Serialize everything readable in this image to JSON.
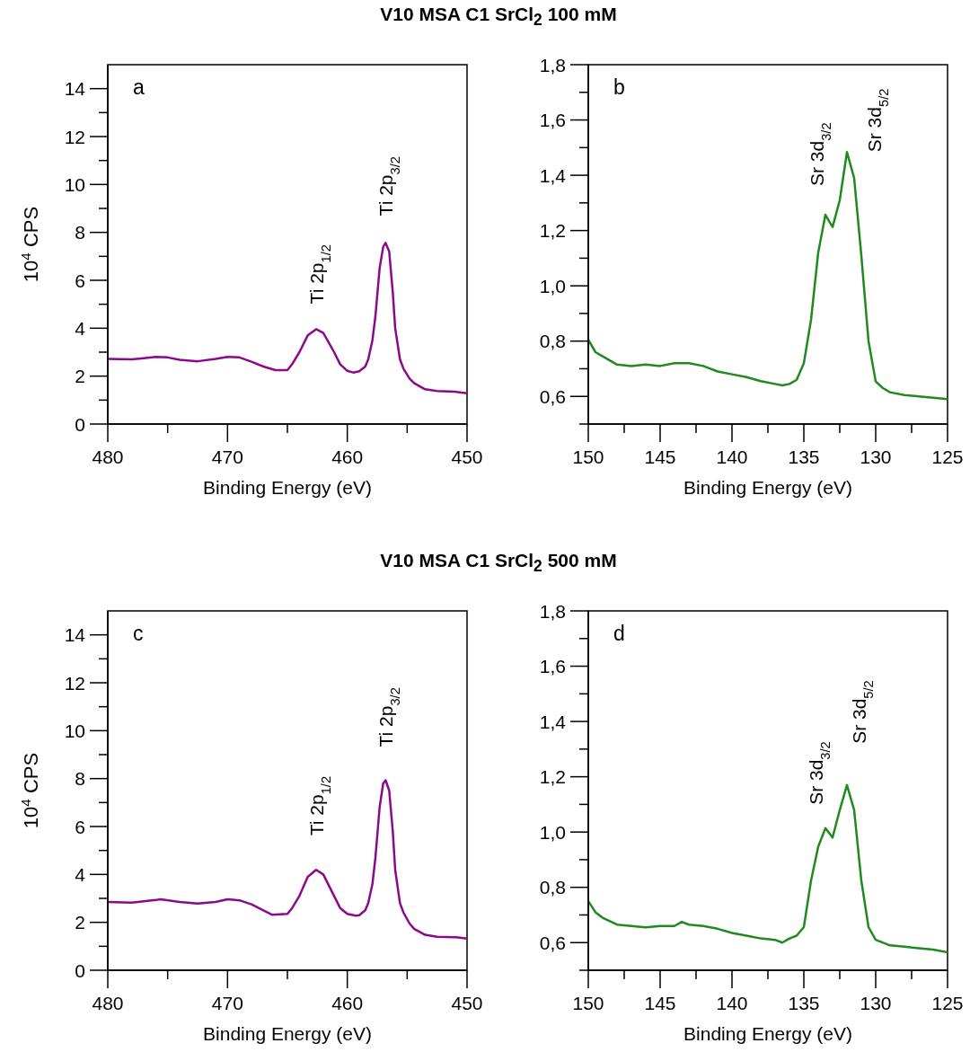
{
  "chart_data": [
    {
      "type": "line",
      "title": "V10 MSA C1 SrCl$_{2}$ 100 mM",
      "xlabel": "Binding Energy (eV)",
      "ylabel": "10$^{4}$ CPS",
      "color": "#8b0a8b",
      "x": [
        480,
        478,
        477,
        476,
        475,
        474,
        472.5,
        471,
        470,
        469,
        468,
        467,
        466,
        465,
        464.6,
        464,
        463.3,
        462.6,
        462,
        461.1,
        460.6,
        460,
        459.5,
        459,
        458.5,
        458.25,
        457.9,
        457.65,
        457.3,
        457,
        456.8,
        456.5,
        456.2,
        456,
        455.6,
        455.3,
        454.8,
        454.4,
        453.5,
        452.5,
        451,
        450
      ],
      "values": [
        2.72,
        2.7,
        2.75,
        2.8,
        2.78,
        2.68,
        2.62,
        2.72,
        2.8,
        2.78,
        2.6,
        2.4,
        2.25,
        2.25,
        2.5,
        3.0,
        3.7,
        3.96,
        3.8,
        3.0,
        2.5,
        2.22,
        2.15,
        2.2,
        2.4,
        2.7,
        3.5,
        4.5,
        6.5,
        7.4,
        7.56,
        7.2,
        5.5,
        4.0,
        2.7,
        2.3,
        1.9,
        1.7,
        1.45,
        1.38,
        1.35,
        1.28
      ],
      "xlim": [
        480,
        450
      ],
      "xticks": [
        480,
        {
          "value": 475,
          "label": null
        },
        470,
        {
          "value": 465,
          "label": null
        },
        460,
        {
          "value": 455,
          "label": null
        },
        450
      ],
      "ylim": [
        0,
        15
      ],
      "yticks": [
        0,
        {
          "value": 1,
          "label": null
        },
        2,
        {
          "value": 3,
          "label": null
        },
        4,
        {
          "value": 5,
          "label": null
        },
        6,
        {
          "value": 7,
          "label": null
        },
        8,
        {
          "value": 9,
          "label": null
        },
        10,
        {
          "value": 11,
          "label": null
        },
        12,
        {
          "value": 13,
          "label": null
        },
        14
      ],
      "annotations": [
        "a",
        {
          "text": "Ti 2p$_{1/2}$",
          "x": 462.6,
          "y": 3.96
        },
        {
          "text": "Ti 2p$_{3/2}$",
          "x": 456.8,
          "y": 7.56
        }
      ]
    },
    {
      "type": "line",
      "xlabel": "Binding Energy (eV)",
      "color": "#1f8a1f",
      "x": [
        150,
        149.5,
        149,
        148,
        147,
        146,
        145,
        144,
        143,
        142,
        141,
        140,
        139,
        138,
        137,
        136.5,
        136,
        135.5,
        135,
        134.5,
        134,
        133.5,
        133.2,
        133,
        132.5,
        132,
        131.5,
        131,
        130.5,
        130,
        129.5,
        129,
        128,
        127,
        126,
        125
      ],
      "values": [
        0.805,
        0.76,
        0.745,
        0.715,
        0.71,
        0.715,
        0.71,
        0.72,
        0.72,
        0.71,
        0.69,
        0.68,
        0.67,
        0.655,
        0.645,
        0.64,
        0.645,
        0.66,
        0.72,
        0.877,
        1.12,
        1.257,
        1.23,
        1.213,
        1.31,
        1.484,
        1.39,
        1.11,
        0.8,
        0.654,
        0.63,
        0.615,
        0.605,
        0.6,
        0.595,
        0.59
      ],
      "xlim": [
        150,
        125
      ],
      "xticks": [
        150,
        {
          "value": 147.5,
          "label": null
        },
        145,
        {
          "value": 142.5,
          "label": null
        },
        140,
        {
          "value": 137.5,
          "label": null
        },
        135,
        {
          "value": 132.5,
          "label": null
        },
        130,
        {
          "value": 127.5,
          "label": null
        },
        125
      ],
      "ylim": [
        0.5,
        1.8
      ],
      "yticks": [
        {
          "value": 0.5,
          "label": null
        },
        {
          "value": 0.6,
          "label": "0,6"
        },
        {
          "value": 0.7,
          "label": null
        },
        {
          "value": 0.8,
          "label": "0,8"
        },
        {
          "value": 0.9,
          "label": null
        },
        {
          "value": 1.0,
          "label": "1,0"
        },
        {
          "value": 1.1,
          "label": null
        },
        {
          "value": 1.2,
          "label": "1,2"
        },
        {
          "value": 1.3,
          "label": null
        },
        {
          "value": 1.4,
          "label": "1,4"
        },
        {
          "value": 1.5,
          "label": null
        },
        {
          "value": 1.6,
          "label": "1,6"
        },
        {
          "value": 1.7,
          "label": null
        },
        {
          "value": 1.8,
          "label": "1,8"
        }
      ],
      "annotations": [
        "b",
        {
          "text": "Sr 3d$_{3/2}$",
          "x": 133.5,
          "y": 1.257
        },
        {
          "text": "Sr 3d$_{5/2}$",
          "x": 132,
          "y": 1.484
        }
      ]
    },
    {
      "type": "line",
      "title": "V10 MSA C1 SrCl$_{2}$ 500 mM",
      "xlabel": "Binding Energy (eV)",
      "ylabel": "10$^{4}$ CPS",
      "color": "#8b0a8b",
      "x": [
        480,
        478,
        477,
        476,
        475.6,
        474,
        472.5,
        471,
        470,
        469,
        468,
        467,
        466.3,
        465,
        464.6,
        464,
        463.3,
        462.6,
        462,
        461.1,
        460.6,
        460,
        459.3,
        459,
        458.5,
        458.25,
        457.9,
        457.65,
        457.3,
        457,
        456.8,
        456.5,
        456.2,
        456,
        455.6,
        455.3,
        454.8,
        454.4,
        453.5,
        452.5,
        451,
        450
      ],
      "values": [
        2.85,
        2.82,
        2.88,
        2.93,
        2.96,
        2.85,
        2.78,
        2.85,
        2.96,
        2.92,
        2.75,
        2.5,
        2.32,
        2.35,
        2.6,
        3.1,
        3.9,
        4.19,
        4.0,
        3.1,
        2.6,
        2.35,
        2.28,
        2.3,
        2.5,
        2.8,
        3.6,
        4.7,
        6.8,
        7.8,
        7.93,
        7.5,
        5.8,
        4.2,
        2.8,
        2.4,
        1.95,
        1.72,
        1.48,
        1.4,
        1.38,
        1.32
      ],
      "xlim": [
        480,
        450
      ],
      "xticks": [
        480,
        {
          "value": 475,
          "label": null
        },
        470,
        {
          "value": 465,
          "label": null
        },
        460,
        {
          "value": 455,
          "label": null
        },
        450
      ],
      "ylim": [
        0,
        15
      ],
      "yticks": [
        0,
        {
          "value": 1,
          "label": null
        },
        2,
        {
          "value": 3,
          "label": null
        },
        4,
        {
          "value": 5,
          "label": null
        },
        6,
        {
          "value": 7,
          "label": null
        },
        8,
        {
          "value": 9,
          "label": null
        },
        10,
        {
          "value": 11,
          "label": null
        },
        12,
        {
          "value": 13,
          "label": null
        },
        14
      ],
      "annotations": [
        "c",
        {
          "text": "Ti 2p$_{1/2}$",
          "x": 462.6,
          "y": 4.19
        },
        {
          "text": "Ti 2p$_{3/2}$",
          "x": 456.8,
          "y": 7.93
        }
      ]
    },
    {
      "type": "line",
      "xlabel": "Binding Energy (eV)",
      "color": "#1f8a1f",
      "x": [
        150,
        149.5,
        149,
        148,
        147,
        146,
        145,
        144,
        143.5,
        143,
        142,
        141,
        140,
        139,
        138,
        137,
        136.5,
        136,
        135.5,
        135,
        134.5,
        134,
        133.5,
        133,
        132.5,
        132,
        131.5,
        131,
        130.5,
        130,
        129,
        128,
        127,
        126,
        125
      ],
      "values": [
        0.75,
        0.71,
        0.69,
        0.665,
        0.66,
        0.655,
        0.66,
        0.66,
        0.675,
        0.665,
        0.66,
        0.65,
        0.635,
        0.625,
        0.615,
        0.61,
        0.6,
        0.615,
        0.625,
        0.656,
        0.824,
        0.947,
        1.014,
        0.98,
        1.08,
        1.17,
        1.08,
        0.824,
        0.656,
        0.61,
        0.59,
        0.585,
        0.58,
        0.575,
        0.565
      ],
      "xlim": [
        150,
        125
      ],
      "xticks": [
        150,
        {
          "value": 147.5,
          "label": null
        },
        145,
        {
          "value": 142.5,
          "label": null
        },
        140,
        {
          "value": 137.5,
          "label": null
        },
        135,
        {
          "value": 132.5,
          "label": null
        },
        130,
        {
          "value": 127.5,
          "label": null
        },
        125
      ],
      "ylim": [
        0.5,
        1.8
      ],
      "yticks": [
        {
          "value": 0.5,
          "label": null
        },
        {
          "value": 0.6,
          "label": "0,6"
        },
        {
          "value": 0.7,
          "label": null
        },
        {
          "value": 0.8,
          "label": "0,8"
        },
        {
          "value": 0.9,
          "label": null
        },
        {
          "value": 1.0,
          "label": "1,0"
        },
        {
          "value": 1.1,
          "label": null
        },
        {
          "value": 1.2,
          "label": "1,2"
        },
        {
          "value": 1.3,
          "label": null
        },
        {
          "value": 1.4,
          "label": "1,4"
        },
        {
          "value": 1.5,
          "label": null
        },
        {
          "value": 1.6,
          "label": "1,6"
        },
        {
          "value": 1.7,
          "label": null
        },
        {
          "value": 1.8,
          "label": "1,8"
        }
      ],
      "annotations": [
        "d",
        {
          "text": "Sr 3d$_{3/2}$",
          "x": 133.5,
          "y": 1.014
        },
        {
          "text": "Sr 3d$_{5/2}$",
          "x": 132,
          "y": 1.17
        }
      ]
    }
  ]
}
